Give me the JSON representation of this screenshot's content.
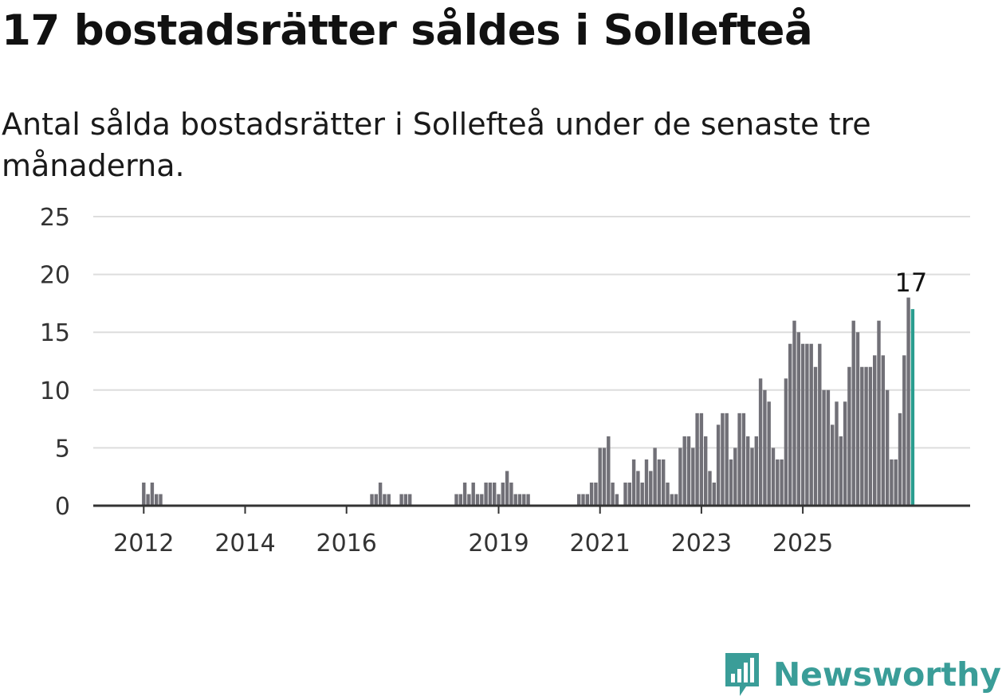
{
  "title": "17 bostadsrätter såldes i Sollefteå",
  "subtitle": "Antal sålda bostadsrätter i Sollefteå under de senaste tre månaderna.",
  "brand": {
    "name": "Newsworthy",
    "color": "#3a9d98",
    "icon": "newsworthy-logo-icon"
  },
  "colors": {
    "bar": "#717077",
    "highlight": "#2a9d8f",
    "grid": "#dddddd",
    "axis": "#333333"
  },
  "chart_data": {
    "type": "bar",
    "x_start": "2011-01",
    "interval": "month",
    "ylim": [
      0,
      25
    ],
    "yticks": [
      0,
      5,
      10,
      15,
      20,
      25
    ],
    "xticks": [
      "2012",
      "2014",
      "2016",
      "2019",
      "2021",
      "2023",
      "2025"
    ],
    "grid": true,
    "highlight_last": true,
    "last_label": "17",
    "values": [
      0,
      0,
      0,
      0,
      0,
      0,
      0,
      0,
      0,
      0,
      0,
      0,
      2,
      1,
      2,
      1,
      1,
      0,
      0,
      0,
      0,
      0,
      0,
      0,
      0,
      0,
      0,
      0,
      0,
      0,
      0,
      0,
      0,
      0,
      0,
      0,
      0,
      0,
      0,
      0,
      0,
      0,
      0,
      0,
      0,
      0,
      0,
      0,
      0,
      0,
      0,
      0,
      0,
      0,
      0,
      0,
      0,
      0,
      0,
      0,
      0,
      0,
      0,
      0,
      0,
      0,
      1,
      1,
      2,
      1,
      1,
      0,
      0,
      1,
      1,
      1,
      0,
      0,
      0,
      0,
      0,
      0,
      0,
      0,
      0,
      0,
      1,
      1,
      2,
      1,
      2,
      1,
      1,
      2,
      2,
      2,
      1,
      2,
      3,
      2,
      1,
      1,
      1,
      1,
      0,
      0,
      0,
      0,
      0,
      0,
      0,
      0,
      0,
      0,
      0,
      1,
      1,
      1,
      2,
      2,
      5,
      5,
      6,
      2,
      1,
      0,
      2,
      2,
      4,
      3,
      2,
      4,
      3,
      5,
      4,
      4,
      2,
      1,
      1,
      5,
      6,
      6,
      5,
      8,
      8,
      6,
      3,
      2,
      7,
      8,
      8,
      4,
      5,
      8,
      8,
      6,
      5,
      6,
      11,
      10,
      9,
      5,
      4,
      4,
      11,
      14,
      16,
      15,
      14,
      14,
      14,
      12,
      14,
      10,
      10,
      7,
      9,
      6,
      9,
      12,
      16,
      15,
      12,
      12,
      12,
      13,
      16,
      13,
      10,
      4,
      4,
      8,
      13,
      18,
      17
    ]
  }
}
